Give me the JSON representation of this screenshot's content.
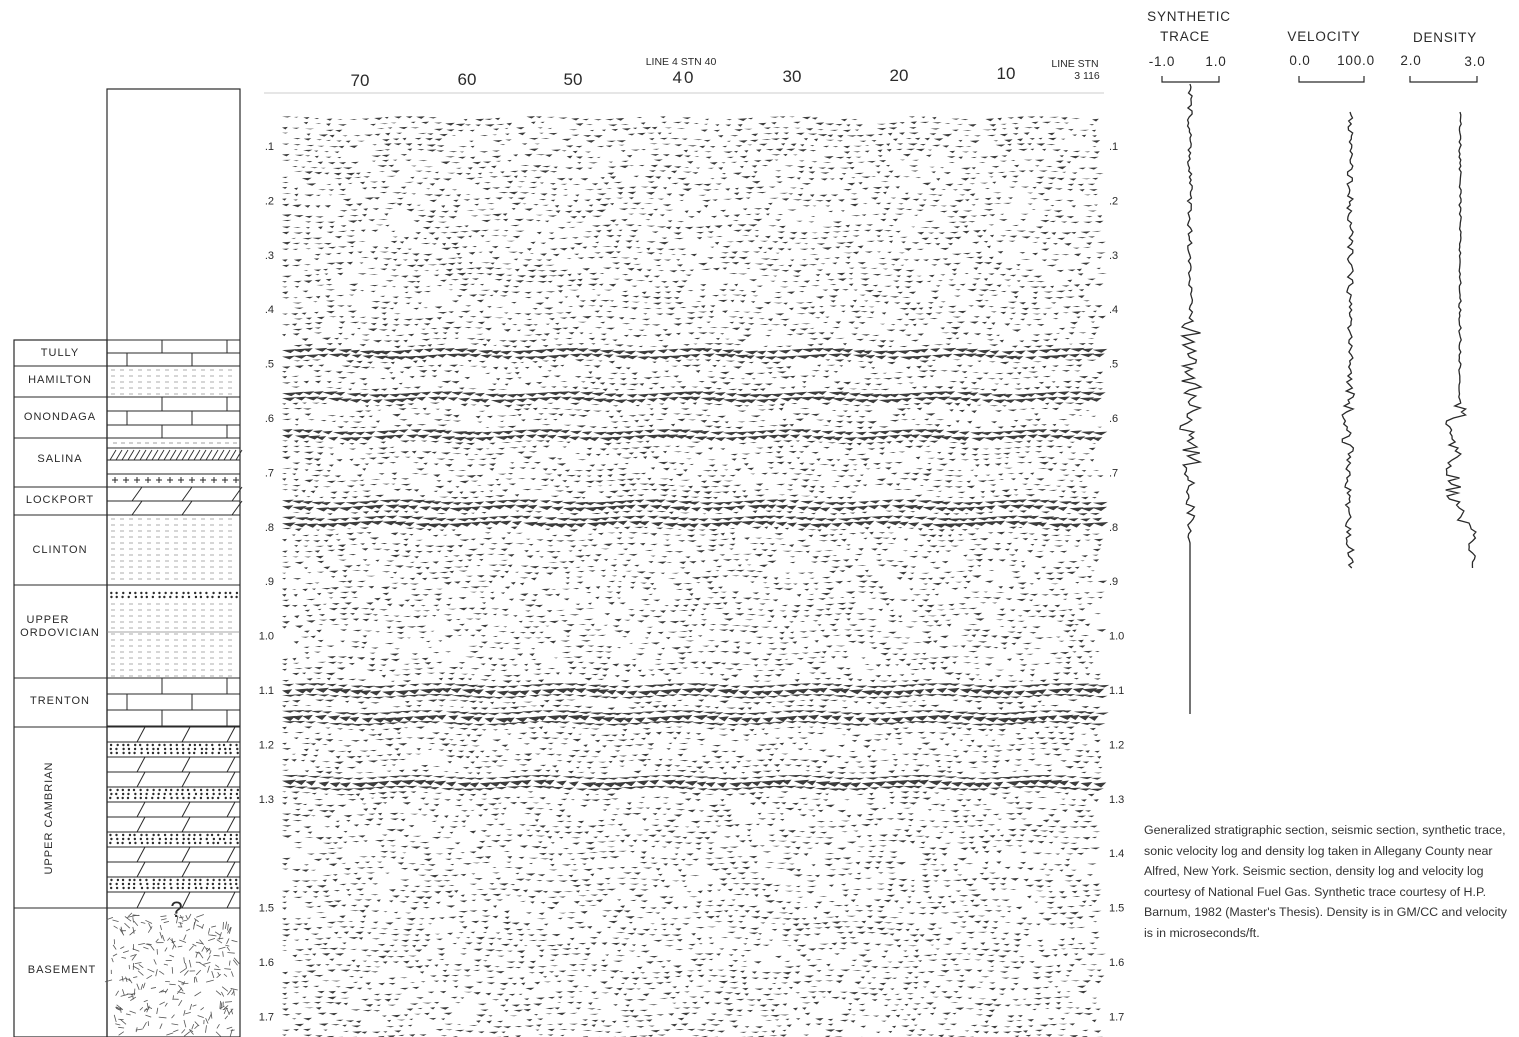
{
  "strat_column": {
    "units": [
      "TULLY",
      "HAMILTON",
      "ONONDAGA",
      "SALINA",
      "LOCKPORT",
      "CLINTON",
      "UPPER\nORDOVICIAN",
      "TRENTON",
      "UPPER CAMBRIAN",
      "BASEMENT"
    ],
    "unknown_marker": "?"
  },
  "seismic": {
    "station_labels": [
      "70",
      "60",
      "50",
      "40",
      "30",
      "20",
      "10"
    ],
    "tie_line4": "LINE 4  STN 40",
    "tie_line3_top": "LINE  STN",
    "tie_line3_bottom": "3    116",
    "time_ticks": [
      ".1",
      ".2",
      ".3",
      ".4",
      ".5",
      ".6",
      ".7",
      ".8",
      ".9",
      "1.0",
      "1.1",
      "1.2",
      "1.3",
      "1.4",
      "1.5",
      "1.6",
      "1.7"
    ],
    "strong_reflector_times": [
      0.48,
      0.56,
      0.63,
      0.76,
      0.79,
      1.1,
      1.15,
      1.27
    ],
    "time_range": [
      0.05,
      1.75
    ]
  },
  "logs": {
    "synthetic": {
      "title_line1": "SYNTHETIC",
      "title_line2": "TRACE",
      "min_label": "-1.0",
      "max_label": "1.0"
    },
    "velocity": {
      "title": "VELOCITY",
      "min_label": "0.0",
      "max_label": "100.0"
    },
    "density": {
      "title": "DENSITY",
      "min_label": "2.0",
      "max_label": "3.0"
    }
  },
  "caption": "Generalized stratigraphic section, seismic section, synthetic trace, sonic velocity log and density log taken in Allegany County near Alfred, New York. Seismic section, density log and velocity log courtesy of National Fuel Gas. Synthetic trace courtesy of H.P. Barnum, 1982 (Master's Thesis). Density is in GM/CC and velocity is in microseconds/ft.",
  "colors": {
    "ink": "#2a2a2a",
    "paper": "#ffffff",
    "wiggle": "#3c3c3c"
  }
}
